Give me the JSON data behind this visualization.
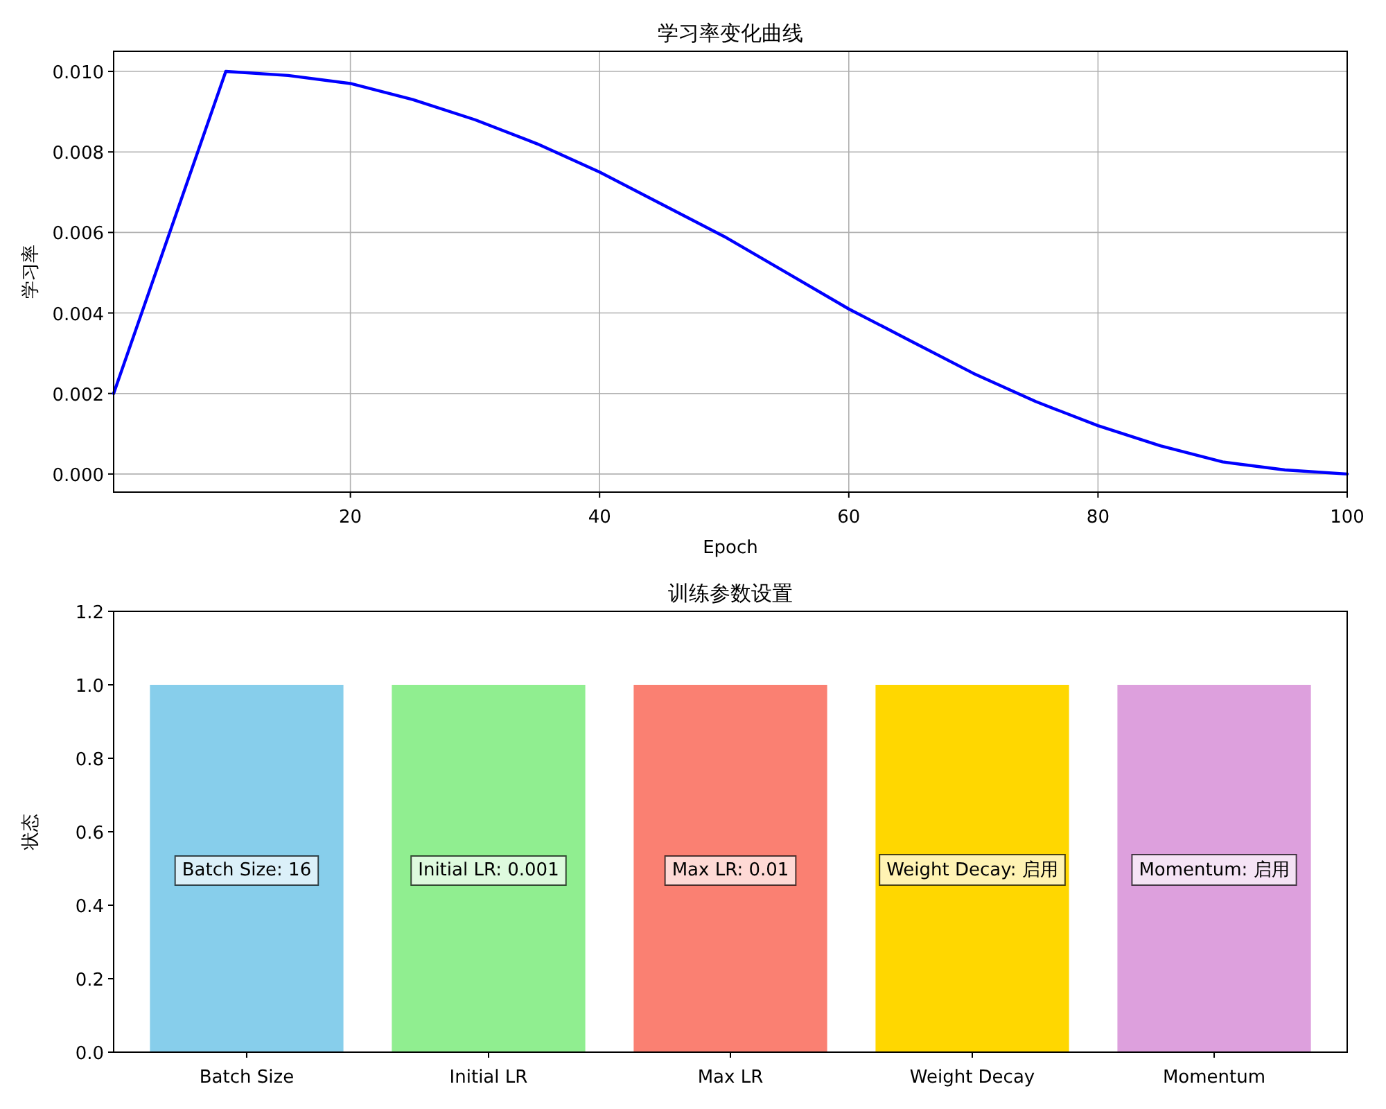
{
  "chart_data": [
    {
      "type": "line",
      "title": "学习率变化曲线",
      "xlabel": "Epoch",
      "ylabel": "学习率",
      "xlim": [
        1,
        100
      ],
      "ylim": [
        -0.00045,
        0.0105
      ],
      "xticks": [
        20,
        40,
        60,
        80,
        100
      ],
      "yticks": [
        {
          "value": 0,
          "label": "0.000"
        },
        {
          "value": 0.002,
          "label": "0.002"
        },
        {
          "value": 0.004,
          "label": "0.004"
        },
        {
          "value": 0.006,
          "label": "0.006"
        },
        {
          "value": 0.008,
          "label": "0.008"
        },
        {
          "value": 0.01,
          "label": "0.010"
        }
      ],
      "grid": true,
      "series": [
        {
          "color": "#0000ff",
          "x": [
            1,
            10,
            15,
            20,
            25,
            30,
            35,
            40,
            45,
            50,
            55,
            60,
            65,
            70,
            75,
            80,
            85,
            90,
            95,
            100
          ],
          "values": [
            0.002,
            0.01,
            0.0099,
            0.0097,
            0.0093,
            0.0088,
            0.0082,
            0.0075,
            0.0067,
            0.0059,
            0.005,
            0.0041,
            0.0033,
            0.0025,
            0.0018,
            0.0012,
            0.0007,
            0.0003,
            0.0001,
            0.0
          ]
        }
      ]
    },
    {
      "type": "bar",
      "title": "训练参数设置",
      "ylabel": "状态",
      "categories": [
        "Batch Size",
        "Initial LR",
        "Max LR",
        "Weight Decay",
        "Momentum"
      ],
      "values": [
        1,
        1,
        1,
        1,
        1
      ],
      "colors": [
        "#87ceeb",
        "#90ee90",
        "#fa8072",
        "#ffd700",
        "#dda0dd"
      ],
      "ylim": [
        0,
        1.2
      ],
      "yticks": [
        {
          "value": 0,
          "label": "0.0"
        },
        {
          "value": 0.2,
          "label": "0.2"
        },
        {
          "value": 0.4,
          "label": "0.4"
        },
        {
          "value": 0.6,
          "label": "0.6"
        },
        {
          "value": 0.8,
          "label": "0.8"
        },
        {
          "value": 1,
          "label": "1.0"
        },
        {
          "value": 1.2,
          "label": "1.2"
        }
      ],
      "annotations": [
        "Batch Size: 16",
        "Initial LR: 0.001",
        "Max LR: 0.01",
        "Weight Decay: 启用",
        "Momentum: 启用"
      ]
    }
  ]
}
